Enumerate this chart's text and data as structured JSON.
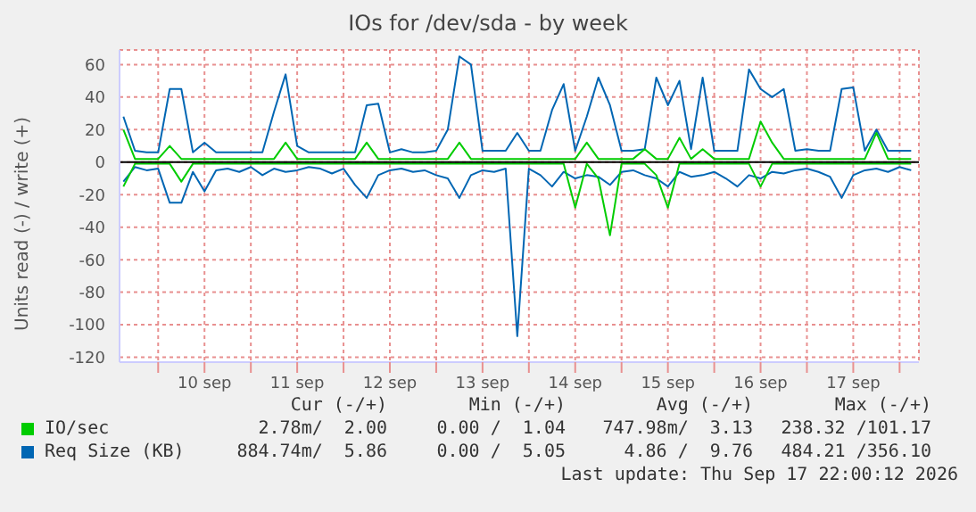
{
  "chart_data": {
    "type": "line",
    "title": "IOs for /dev/sda - by week",
    "ylabel": "Units read (-) / write (+)",
    "x": [
      "2026-09-09T15:00",
      "2026-09-09T18:00",
      "2026-09-09T21:00",
      "2026-09-10T00:00",
      "2026-09-10T03:00",
      "2026-09-10T06:00",
      "2026-09-10T09:00",
      "2026-09-10T12:00",
      "2026-09-10T15:00",
      "2026-09-10T18:00",
      "2026-09-10T21:00",
      "2026-09-11T00:00",
      "2026-09-11T03:00",
      "2026-09-11T06:00",
      "2026-09-11T09:00",
      "2026-09-11T12:00",
      "2026-09-11T15:00",
      "2026-09-11T18:00",
      "2026-09-11T21:00",
      "2026-09-12T00:00",
      "2026-09-12T03:00",
      "2026-09-12T06:00",
      "2026-09-12T09:00",
      "2026-09-12T12:00",
      "2026-09-12T15:00",
      "2026-09-12T18:00",
      "2026-09-12T21:00",
      "2026-09-13T00:00",
      "2026-09-13T03:00",
      "2026-09-13T06:00",
      "2026-09-13T09:00",
      "2026-09-13T12:00",
      "2026-09-13T15:00",
      "2026-09-13T18:00",
      "2026-09-13T21:00",
      "2026-09-14T00:00",
      "2026-09-14T03:00",
      "2026-09-14T06:00",
      "2026-09-14T09:00",
      "2026-09-14T12:00",
      "2026-09-14T15:00",
      "2026-09-14T18:00",
      "2026-09-14T21:00",
      "2026-09-15T00:00",
      "2026-09-15T03:00",
      "2026-09-15T06:00",
      "2026-09-15T09:00",
      "2026-09-15T12:00",
      "2026-09-15T15:00",
      "2026-09-15T18:00",
      "2026-09-15T21:00",
      "2026-09-16T00:00",
      "2026-09-16T03:00",
      "2026-09-16T06:00",
      "2026-09-16T09:00",
      "2026-09-16T12:00",
      "2026-09-16T15:00",
      "2026-09-16T18:00",
      "2026-09-16T21:00",
      "2026-09-17T00:00",
      "2026-09-17T03:00",
      "2026-09-17T06:00",
      "2026-09-17T09:00",
      "2026-09-17T12:00",
      "2026-09-17T15:00",
      "2026-09-17T18:00",
      "2026-09-17T21:00",
      "2026-09-18T00:00",
      "2026-09-18T03:00"
    ],
    "series": [
      {
        "color": "#0066b3",
        "values": [
          -12,
          -3,
          -5,
          -4,
          -25,
          -25,
          -6,
          -18,
          -5,
          -4,
          -6,
          -3,
          -8,
          -4,
          -6,
          -5,
          -3,
          -4,
          -7,
          -4,
          -14,
          -22,
          -8,
          -5,
          -4,
          -6,
          -5,
          -8,
          -10,
          -22,
          -8,
          -5,
          -6,
          -4,
          -107,
          -4,
          -8,
          -15,
          -6,
          -10,
          -8,
          -9,
          -14,
          -6,
          -5,
          -8,
          -10,
          -15,
          -6,
          -9,
          -8,
          -6,
          -10,
          -15,
          -8,
          -10,
          -6,
          -7,
          -5,
          -4,
          -6,
          -9,
          -22,
          -8,
          -5,
          -4,
          -6,
          -3,
          -5
        ]
      },
      {
        "name": "Req Size (KB)",
        "color": "#0066b3",
        "values": [
          28,
          7,
          6,
          6,
          45,
          45,
          6,
          12,
          6,
          6,
          6,
          6,
          6,
          31,
          54,
          10,
          6,
          6,
          6,
          6,
          6,
          35,
          36,
          6,
          8,
          6,
          6,
          7,
          20,
          65,
          60,
          7,
          7,
          7,
          18,
          7,
          7,
          32,
          48,
          7,
          28,
          52,
          35,
          7,
          7,
          8,
          52,
          35,
          50,
          8,
          52,
          7,
          7,
          7,
          57,
          45,
          40,
          45,
          7,
          8,
          7,
          7,
          45,
          46,
          7,
          20,
          7,
          7,
          7
        ]
      },
      {
        "color": "#00cc00",
        "values": [
          -15,
          -1,
          -1,
          -1,
          -1,
          -12,
          -1,
          -1,
          -1,
          -1,
          -1,
          -1,
          -1,
          -1,
          -1,
          -1,
          -1,
          -1,
          -1,
          -1,
          -1,
          -1,
          -1,
          -1,
          -1,
          -1,
          -1,
          -1,
          -1,
          -1,
          -1,
          -1,
          -1,
          -1,
          -1,
          -1,
          -1,
          -1,
          -1,
          -28,
          -1,
          -10,
          -45,
          -1,
          -1,
          -1,
          -8,
          -28,
          -1,
          -1,
          -1,
          -1,
          -1,
          -1,
          -1,
          -15,
          -1,
          -1,
          -1,
          -1,
          -1,
          -1,
          -1,
          -1,
          -1,
          -1,
          -1,
          -1,
          -1
        ]
      },
      {
        "name": "IO/sec",
        "color": "#00cc00",
        "values": [
          20,
          2,
          2,
          2,
          10,
          2,
          2,
          2,
          2,
          2,
          2,
          2,
          2,
          2,
          12,
          2,
          2,
          2,
          2,
          2,
          2,
          12,
          2,
          2,
          2,
          2,
          2,
          2,
          2,
          12,
          2,
          2,
          2,
          2,
          2,
          2,
          2,
          2,
          2,
          2,
          12,
          2,
          2,
          2,
          2,
          8,
          2,
          2,
          15,
          2,
          8,
          2,
          2,
          2,
          2,
          25,
          12,
          2,
          2,
          2,
          2,
          2,
          2,
          2,
          2,
          18,
          2,
          2,
          2
        ]
      }
    ],
    "xlim": [
      "2026-09-09T14:00",
      "2026-09-18T05:00"
    ],
    "xticks": [
      {
        "value": "2026-09-10T00:00",
        "label": null
      },
      {
        "value": "2026-09-10T12:00",
        "label": "10 sep"
      },
      {
        "value": "2026-09-11T00:00",
        "label": null
      },
      {
        "value": "2026-09-11T12:00",
        "label": "11 sep"
      },
      {
        "value": "2026-09-12T00:00",
        "label": null
      },
      {
        "value": "2026-09-12T12:00",
        "label": "12 sep"
      },
      {
        "value": "2026-09-13T00:00",
        "label": null
      },
      {
        "value": "2026-09-13T12:00",
        "label": "13 sep"
      },
      {
        "value": "2026-09-14T00:00",
        "label": null
      },
      {
        "value": "2026-09-14T12:00",
        "label": "14 sep"
      },
      {
        "value": "2026-09-15T00:00",
        "label": null
      },
      {
        "value": "2026-09-15T12:00",
        "label": "15 sep"
      },
      {
        "value": "2026-09-16T00:00",
        "label": null
      },
      {
        "value": "2026-09-16T12:00",
        "label": "16 sep"
      },
      {
        "value": "2026-09-17T00:00",
        "label": null
      },
      {
        "value": "2026-09-17T12:00",
        "label": "17 sep"
      },
      {
        "value": "2026-09-18T00:00",
        "label": null
      }
    ],
    "ylim": [
      -123,
      69
    ],
    "yticks": [
      -120,
      -100,
      -80,
      -60,
      -40,
      -20,
      0,
      20,
      40,
      60
    ],
    "grid": true,
    "legend": "bottom",
    "marker": "none",
    "line_style": "solid",
    "ref_lines": [
      {
        "axis": "y",
        "value": 0,
        "color": "#000000"
      }
    ],
    "annotations": [
      "Cur (-/+)",
      "Min (-/+)",
      "Avg (-/+)",
      "Max (-/+)",
      "2.78m/  2.00",
      "0.00 /  1.04",
      "747.98m/  3.13",
      "238.32 /101.17",
      "884.74m/  5.86",
      "0.00 /  5.05",
      "4.86 /  9.76",
      "484.21 /356.10",
      "Last update: Thu Sep 17 22:00:12 2026"
    ]
  }
}
